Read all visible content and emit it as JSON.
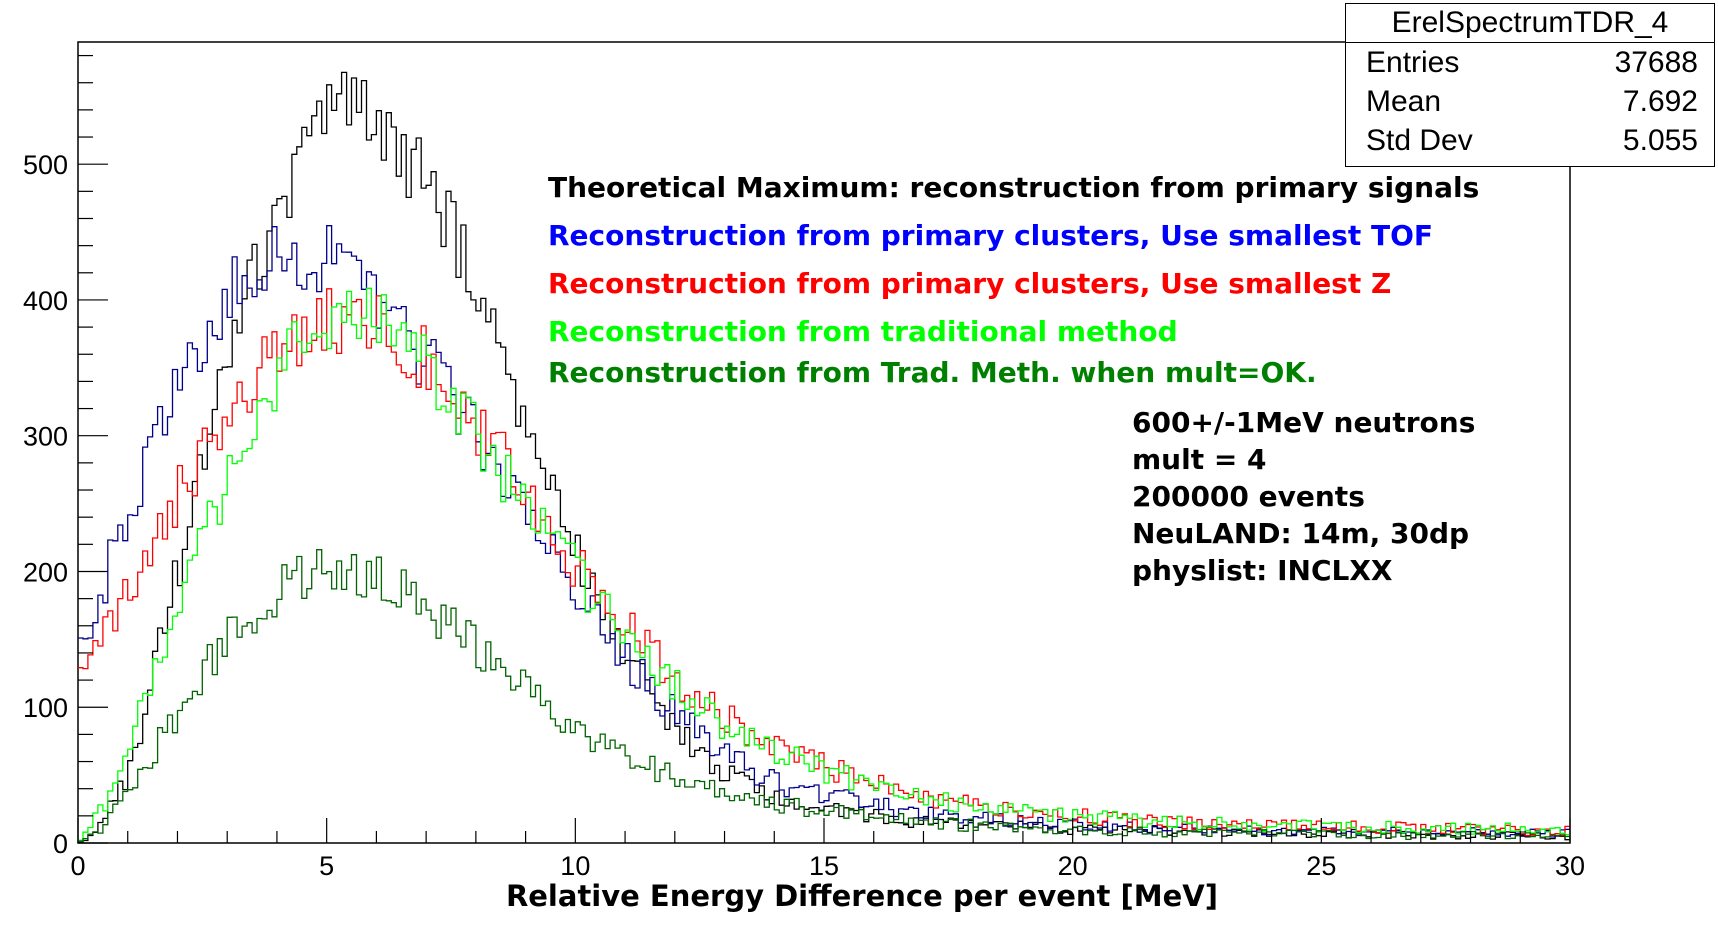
{
  "stats": {
    "title": "ErelSpectrumTDR_4",
    "rows": [
      {
        "label": "Entries",
        "value": "37688"
      },
      {
        "label": "Mean",
        "value": "7.692"
      },
      {
        "label": "Std Dev",
        "value": "5.055"
      }
    ]
  },
  "legend": [
    {
      "text": "Theoretical Maximum: reconstruction from primary signals",
      "color": "#000000"
    },
    {
      "text": "Reconstruction from primary clusters, Use smallest TOF",
      "color": "#0000ff"
    },
    {
      "text": "Reconstruction from primary clusters, Use smallest Z",
      "color": "#ff0000"
    },
    {
      "text": "Reconstruction from traditional method",
      "color": "#00ff00"
    },
    {
      "text": "Reconstruction from Trad. Meth. when mult=OK.",
      "color": "#008000"
    }
  ],
  "info_lines": [
    "600+/-1MeV neutrons",
    "mult = 4",
    "200000 events",
    "NeuLAND: 14m, 30dp",
    "physlist: INCLXX"
  ],
  "chart_data": {
    "type": "line",
    "xlabel": "Relative Energy Difference per event [MeV]",
    "ylabel": "",
    "xlim": [
      0,
      30
    ],
    "ylim": [
      0,
      590
    ],
    "xticks": [
      0,
      5,
      10,
      15,
      20,
      25,
      30
    ],
    "yticks": [
      0,
      100,
      200,
      300,
      400,
      500
    ],
    "bin_width": 0.1,
    "grid": false,
    "series": [
      {
        "color": "#000000",
        "points": [
          [
            0,
            0
          ],
          [
            0.5,
            15
          ],
          [
            1,
            50
          ],
          [
            1.5,
            120
          ],
          [
            2,
            200
          ],
          [
            2.5,
            280
          ],
          [
            3,
            360
          ],
          [
            3.5,
            420
          ],
          [
            4,
            460
          ],
          [
            4.5,
            500
          ],
          [
            5,
            530
          ],
          [
            5.5,
            545
          ],
          [
            6,
            535
          ],
          [
            6.5,
            510
          ],
          [
            7,
            485
          ],
          [
            7.5,
            455
          ],
          [
            8,
            410
          ],
          [
            8.5,
            360
          ],
          [
            9,
            310
          ],
          [
            9.5,
            265
          ],
          [
            10,
            215
          ],
          [
            10.5,
            175
          ],
          [
            11,
            140
          ],
          [
            11.5,
            110
          ],
          [
            12,
            85
          ],
          [
            12.5,
            65
          ],
          [
            13,
            50
          ],
          [
            14,
            35
          ],
          [
            15,
            25
          ],
          [
            16,
            20
          ],
          [
            17,
            15
          ],
          [
            18,
            13
          ],
          [
            20,
            10
          ],
          [
            22,
            9
          ],
          [
            25,
            7
          ],
          [
            30,
            5
          ]
        ]
      },
      {
        "color": "#00008b",
        "points": [
          [
            0,
            140
          ],
          [
            0.5,
            190
          ],
          [
            1,
            240
          ],
          [
            1.5,
            290
          ],
          [
            2,
            330
          ],
          [
            2.5,
            370
          ],
          [
            3,
            400
          ],
          [
            3.5,
            420
          ],
          [
            4,
            430
          ],
          [
            4.5,
            435
          ],
          [
            5,
            430
          ],
          [
            5.5,
            420
          ],
          [
            6,
            400
          ],
          [
            6.5,
            380
          ],
          [
            7,
            355
          ],
          [
            7.5,
            330
          ],
          [
            8,
            300
          ],
          [
            8.5,
            275
          ],
          [
            9,
            250
          ],
          [
            9.5,
            220
          ],
          [
            10,
            190
          ],
          [
            10.5,
            160
          ],
          [
            11,
            135
          ],
          [
            11.5,
            115
          ],
          [
            12,
            95
          ],
          [
            12.5,
            80
          ],
          [
            13,
            65
          ],
          [
            14,
            45
          ],
          [
            15,
            35
          ],
          [
            16,
            28
          ],
          [
            17,
            22
          ],
          [
            18,
            18
          ],
          [
            20,
            14
          ],
          [
            22,
            11
          ],
          [
            25,
            9
          ],
          [
            30,
            7
          ]
        ]
      },
      {
        "color": "#ff0000",
        "points": [
          [
            0,
            120
          ],
          [
            0.5,
            150
          ],
          [
            1,
            185
          ],
          [
            1.5,
            220
          ],
          [
            2,
            255
          ],
          [
            2.5,
            285
          ],
          [
            3,
            315
          ],
          [
            3.5,
            340
          ],
          [
            4,
            360
          ],
          [
            4.5,
            375
          ],
          [
            5,
            385
          ],
          [
            5.5,
            385
          ],
          [
            6,
            380
          ],
          [
            6.5,
            370
          ],
          [
            7,
            355
          ],
          [
            7.5,
            335
          ],
          [
            8,
            310
          ],
          [
            8.5,
            285
          ],
          [
            9,
            258
          ],
          [
            9.5,
            230
          ],
          [
            10,
            205
          ],
          [
            10.5,
            180
          ],
          [
            11,
            160
          ],
          [
            11.5,
            140
          ],
          [
            12,
            122
          ],
          [
            12.5,
            107
          ],
          [
            13,
            93
          ],
          [
            14,
            72
          ],
          [
            15,
            56
          ],
          [
            16,
            44
          ],
          [
            17,
            35
          ],
          [
            18,
            28
          ],
          [
            20,
            20
          ],
          [
            22,
            15
          ],
          [
            25,
            12
          ],
          [
            30,
            9
          ]
        ]
      },
      {
        "color": "#00ff00",
        "points": [
          [
            0,
            0
          ],
          [
            0.5,
            25
          ],
          [
            1,
            70
          ],
          [
            1.5,
            120
          ],
          [
            2,
            170
          ],
          [
            2.5,
            220
          ],
          [
            3,
            270
          ],
          [
            3.5,
            310
          ],
          [
            4,
            345
          ],
          [
            4.5,
            370
          ],
          [
            5,
            385
          ],
          [
            5.5,
            390
          ],
          [
            6,
            385
          ],
          [
            6.5,
            370
          ],
          [
            7,
            350
          ],
          [
            7.5,
            325
          ],
          [
            8,
            300
          ],
          [
            8.5,
            275
          ],
          [
            9,
            250
          ],
          [
            9.5,
            225
          ],
          [
            10,
            200
          ],
          [
            10.5,
            175
          ],
          [
            11,
            155
          ],
          [
            11.5,
            135
          ],
          [
            12,
            118
          ],
          [
            12.5,
            102
          ],
          [
            13,
            88
          ],
          [
            14,
            68
          ],
          [
            15,
            53
          ],
          [
            16,
            42
          ],
          [
            17,
            34
          ],
          [
            18,
            27
          ],
          [
            20,
            20
          ],
          [
            22,
            15
          ],
          [
            25,
            12
          ],
          [
            30,
            10
          ]
        ]
      },
      {
        "color": "#006400",
        "points": [
          [
            0,
            0
          ],
          [
            0.5,
            10
          ],
          [
            1,
            35
          ],
          [
            1.5,
            65
          ],
          [
            2,
            95
          ],
          [
            2.5,
            125
          ],
          [
            3,
            150
          ],
          [
            3.5,
            170
          ],
          [
            4,
            185
          ],
          [
            4.5,
            195
          ],
          [
            5,
            200
          ],
          [
            5.5,
            200
          ],
          [
            6,
            195
          ],
          [
            6.5,
            188
          ],
          [
            7,
            175
          ],
          [
            7.5,
            160
          ],
          [
            8,
            145
          ],
          [
            8.5,
            130
          ],
          [
            9,
            115
          ],
          [
            9.5,
            100
          ],
          [
            10,
            85
          ],
          [
            10.5,
            73
          ],
          [
            11,
            63
          ],
          [
            11.5,
            55
          ],
          [
            12,
            48
          ],
          [
            12.5,
            42
          ],
          [
            13,
            37
          ],
          [
            14,
            29
          ],
          [
            15,
            23
          ],
          [
            16,
            19
          ],
          [
            17,
            15
          ],
          [
            18,
            13
          ],
          [
            20,
            10
          ],
          [
            22,
            8
          ],
          [
            25,
            6
          ],
          [
            30,
            5
          ]
        ]
      }
    ]
  }
}
